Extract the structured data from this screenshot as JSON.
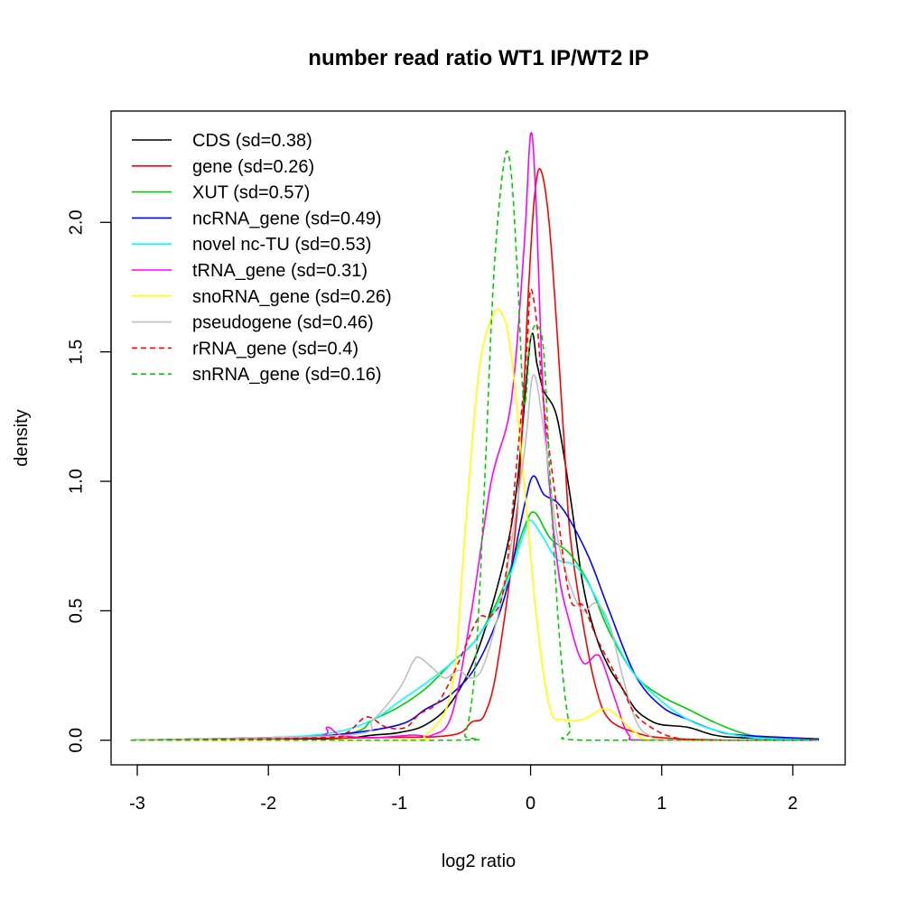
{
  "chart_data": {
    "type": "line",
    "title": "number read ratio WT1 IP/WT2 IP",
    "xlabel": "log2 ratio",
    "ylabel": "density",
    "xlim": [
      -3.2,
      2.4
    ],
    "ylim": [
      -0.095,
      2.43
    ],
    "xticks": [
      -3,
      -2,
      -1,
      0,
      1,
      2
    ],
    "xtick_labels": [
      "-3",
      "-2",
      "-1",
      "0",
      "1",
      "2"
    ],
    "yticks": [
      0,
      0.5,
      1,
      1.5,
      2
    ],
    "ytick_labels": [
      "0.0",
      "0.5",
      "1.0",
      "1.5",
      "2.0"
    ],
    "grid": false,
    "legend_position": "top-left",
    "series": [
      {
        "name": "CDS (sd=0.38)",
        "color": "#000000",
        "dash": false,
        "points": [
          [
            -3.05,
            0
          ],
          [
            -1.6,
            0.005
          ],
          [
            -1.2,
            0.02
          ],
          [
            -1.0,
            0.03
          ],
          [
            -0.8,
            0.06
          ],
          [
            -0.6,
            0.15
          ],
          [
            -0.4,
            0.35
          ],
          [
            -0.2,
            0.7
          ],
          [
            -0.1,
            1.0
          ],
          [
            0.0,
            1.55
          ],
          [
            0.05,
            1.45
          ],
          [
            0.1,
            1.35
          ],
          [
            0.2,
            1.25
          ],
          [
            0.3,
            0.95
          ],
          [
            0.4,
            0.6
          ],
          [
            0.5,
            0.4
          ],
          [
            0.6,
            0.28
          ],
          [
            0.7,
            0.2
          ],
          [
            0.8,
            0.12
          ],
          [
            0.9,
            0.08
          ],
          [
            1.0,
            0.06
          ],
          [
            1.2,
            0.05
          ],
          [
            1.4,
            0.02
          ],
          [
            1.6,
            0.01
          ],
          [
            2.2,
            0
          ]
        ]
      },
      {
        "name": "gene (sd=0.26)",
        "color": "#ff0000",
        "dash": false,
        "points": [
          [
            -3.05,
            0
          ],
          [
            -1.2,
            0.01
          ],
          [
            -0.6,
            0.02
          ],
          [
            -0.45,
            0.07
          ],
          [
            -0.35,
            0.1
          ],
          [
            -0.25,
            0.3
          ],
          [
            -0.1,
            0.9
          ],
          [
            -0.02,
            1.7
          ],
          [
            0.03,
            2.1
          ],
          [
            0.08,
            2.2
          ],
          [
            0.15,
            1.95
          ],
          [
            0.25,
            1.2
          ],
          [
            0.3,
            0.8
          ],
          [
            0.4,
            0.45
          ],
          [
            0.5,
            0.2
          ],
          [
            0.6,
            0.08
          ],
          [
            0.8,
            0.03
          ],
          [
            1.0,
            0.01
          ],
          [
            1.5,
            0
          ],
          [
            2.2,
            0
          ]
        ]
      },
      {
        "name": "XUT (sd=0.57)",
        "color": "#00cd00",
        "dash": false,
        "points": [
          [
            -3.05,
            0
          ],
          [
            -1.5,
            0.02
          ],
          [
            -1.2,
            0.08
          ],
          [
            -1.0,
            0.13
          ],
          [
            -0.8,
            0.2
          ],
          [
            -0.6,
            0.3
          ],
          [
            -0.4,
            0.4
          ],
          [
            -0.2,
            0.6
          ],
          [
            -0.05,
            0.82
          ],
          [
            0.03,
            0.88
          ],
          [
            0.15,
            0.78
          ],
          [
            0.3,
            0.72
          ],
          [
            0.45,
            0.6
          ],
          [
            0.6,
            0.42
          ],
          [
            0.8,
            0.25
          ],
          [
            1.0,
            0.17
          ],
          [
            1.2,
            0.12
          ],
          [
            1.4,
            0.07
          ],
          [
            1.6,
            0.03
          ],
          [
            1.8,
            0.01
          ],
          [
            2.2,
            0
          ]
        ]
      },
      {
        "name": "ncRNA_gene (sd=0.49)",
        "color": "#0000ff",
        "dash": false,
        "points": [
          [
            -3.05,
            0
          ],
          [
            -2,
            0.01
          ],
          [
            -1.5,
            0.02
          ],
          [
            -1.0,
            0.06
          ],
          [
            -0.8,
            0.12
          ],
          [
            -0.6,
            0.18
          ],
          [
            -0.4,
            0.3
          ],
          [
            -0.2,
            0.55
          ],
          [
            -0.05,
            0.9
          ],
          [
            0.02,
            1.02
          ],
          [
            0.1,
            0.95
          ],
          [
            0.2,
            0.92
          ],
          [
            0.3,
            0.85
          ],
          [
            0.45,
            0.7
          ],
          [
            0.6,
            0.5
          ],
          [
            0.8,
            0.25
          ],
          [
            1.0,
            0.13
          ],
          [
            1.2,
            0.08
          ],
          [
            1.4,
            0.04
          ],
          [
            1.6,
            0.02
          ],
          [
            2.2,
            0.005
          ]
        ]
      },
      {
        "name": "novel nc-TU (sd=0.53)",
        "color": "#00ffff",
        "dash": false,
        "points": [
          [
            -3.05,
            0
          ],
          [
            -2,
            0.01
          ],
          [
            -1.5,
            0.03
          ],
          [
            -1.2,
            0.08
          ],
          [
            -1.0,
            0.15
          ],
          [
            -0.8,
            0.22
          ],
          [
            -0.6,
            0.3
          ],
          [
            -0.4,
            0.4
          ],
          [
            -0.2,
            0.58
          ],
          [
            -0.05,
            0.8
          ],
          [
            0.0,
            0.85
          ],
          [
            0.1,
            0.78
          ],
          [
            0.2,
            0.7
          ],
          [
            0.35,
            0.67
          ],
          [
            0.5,
            0.55
          ],
          [
            0.65,
            0.38
          ],
          [
            0.8,
            0.25
          ],
          [
            1.0,
            0.15
          ],
          [
            1.2,
            0.08
          ],
          [
            1.4,
            0.04
          ],
          [
            1.7,
            0.01
          ],
          [
            2.2,
            0
          ]
        ]
      },
      {
        "name": "tRNA_gene (sd=0.31)",
        "color": "#ff00ff",
        "dash": false,
        "points": [
          [
            -3.05,
            0
          ],
          [
            -1.7,
            0.01
          ],
          [
            -1.55,
            0.05
          ],
          [
            -1.45,
            0.02
          ],
          [
            -1.2,
            0.01
          ],
          [
            -0.9,
            0.02
          ],
          [
            -0.75,
            0.02
          ],
          [
            -0.6,
            0.1
          ],
          [
            -0.45,
            0.5
          ],
          [
            -0.3,
            1.0
          ],
          [
            -0.15,
            1.3
          ],
          [
            -0.05,
            1.9
          ],
          [
            0.0,
            2.34
          ],
          [
            0.04,
            2.1
          ],
          [
            0.1,
            1.3
          ],
          [
            0.2,
            0.7
          ],
          [
            0.3,
            0.45
          ],
          [
            0.4,
            0.3
          ],
          [
            0.5,
            0.33
          ],
          [
            0.55,
            0.3
          ],
          [
            0.65,
            0.15
          ],
          [
            0.75,
            0.02
          ],
          [
            0.9,
            0
          ],
          [
            2.2,
            0
          ]
        ]
      },
      {
        "name": "snoRNA_gene (sd=0.26)",
        "color": "#ffff00",
        "dash": false,
        "points": [
          [
            -3.05,
            0
          ],
          [
            -1.0,
            0
          ],
          [
            -0.8,
            0.02
          ],
          [
            -0.6,
            0.2
          ],
          [
            -0.5,
            0.8
          ],
          [
            -0.4,
            1.4
          ],
          [
            -0.3,
            1.63
          ],
          [
            -0.22,
            1.65
          ],
          [
            -0.15,
            1.5
          ],
          [
            -0.05,
            1.0
          ],
          [
            0.05,
            0.45
          ],
          [
            0.15,
            0.12
          ],
          [
            0.25,
            0.08
          ],
          [
            0.4,
            0.08
          ],
          [
            0.55,
            0.12
          ],
          [
            0.65,
            0.1
          ],
          [
            0.8,
            0.03
          ],
          [
            1.0,
            0
          ],
          [
            2.2,
            0
          ]
        ]
      },
      {
        "name": "pseudogene (sd=0.46)",
        "color": "#bebebe",
        "dash": false,
        "points": [
          [
            -3.05,
            0
          ],
          [
            -1.4,
            0.02
          ],
          [
            -1.2,
            0.08
          ],
          [
            -1.0,
            0.2
          ],
          [
            -0.9,
            0.3
          ],
          [
            -0.85,
            0.32
          ],
          [
            -0.75,
            0.28
          ],
          [
            -0.65,
            0.24
          ],
          [
            -0.55,
            0.27
          ],
          [
            -0.45,
            0.24
          ],
          [
            -0.35,
            0.3
          ],
          [
            -0.2,
            0.6
          ],
          [
            -0.05,
            1.1
          ],
          [
            0.02,
            1.41
          ],
          [
            0.1,
            1.2
          ],
          [
            0.2,
            0.8
          ],
          [
            0.3,
            0.6
          ],
          [
            0.4,
            0.5
          ],
          [
            0.5,
            0.53
          ],
          [
            0.6,
            0.45
          ],
          [
            0.7,
            0.25
          ],
          [
            0.8,
            0.08
          ],
          [
            0.9,
            0.02
          ],
          [
            1.1,
            0
          ],
          [
            2.2,
            0
          ]
        ]
      },
      {
        "name": "rRNA_gene (sd=0.4)",
        "color": "#ff0000",
        "dash": true,
        "points": [
          [
            -3.05,
            0
          ],
          [
            -1.6,
            0.01
          ],
          [
            -1.4,
            0.03
          ],
          [
            -1.25,
            0.09
          ],
          [
            -1.1,
            0.05
          ],
          [
            -0.95,
            0.05
          ],
          [
            -0.85,
            0.1
          ],
          [
            -0.7,
            0.15
          ],
          [
            -0.55,
            0.3
          ],
          [
            -0.4,
            0.47
          ],
          [
            -0.3,
            0.48
          ],
          [
            -0.2,
            0.6
          ],
          [
            -0.1,
            1.1
          ],
          [
            -0.03,
            1.5
          ],
          [
            0.0,
            1.74
          ],
          [
            0.05,
            1.6
          ],
          [
            0.1,
            1.3
          ],
          [
            0.2,
            0.9
          ],
          [
            0.3,
            0.55
          ],
          [
            0.4,
            0.52
          ],
          [
            0.5,
            0.4
          ],
          [
            0.6,
            0.3
          ],
          [
            0.7,
            0.2
          ],
          [
            0.8,
            0.1
          ],
          [
            0.95,
            0.04
          ],
          [
            1.1,
            0.01
          ],
          [
            1.3,
            0
          ],
          [
            2.2,
            0
          ]
        ]
      },
      {
        "name": "snRNA_gene (sd=0.16)",
        "color": "#00cd00",
        "dash": true,
        "points": [
          [
            -3.05,
            0
          ],
          [
            -0.6,
            0
          ],
          [
            -0.5,
            0.02
          ],
          [
            -0.42,
            0.3
          ],
          [
            -0.35,
            1.0
          ],
          [
            -0.28,
            1.8
          ],
          [
            -0.2,
            2.24
          ],
          [
            -0.15,
            2.2
          ],
          [
            -0.1,
            1.8
          ],
          [
            -0.05,
            1.3
          ],
          [
            0.0,
            1.55
          ],
          [
            0.05,
            1.6
          ],
          [
            0.1,
            1.5
          ],
          [
            0.15,
            1.0
          ],
          [
            0.22,
            0.4
          ],
          [
            0.3,
            0.05
          ],
          [
            0.4,
            0
          ],
          [
            2.2,
            0
          ]
        ]
      }
    ]
  }
}
